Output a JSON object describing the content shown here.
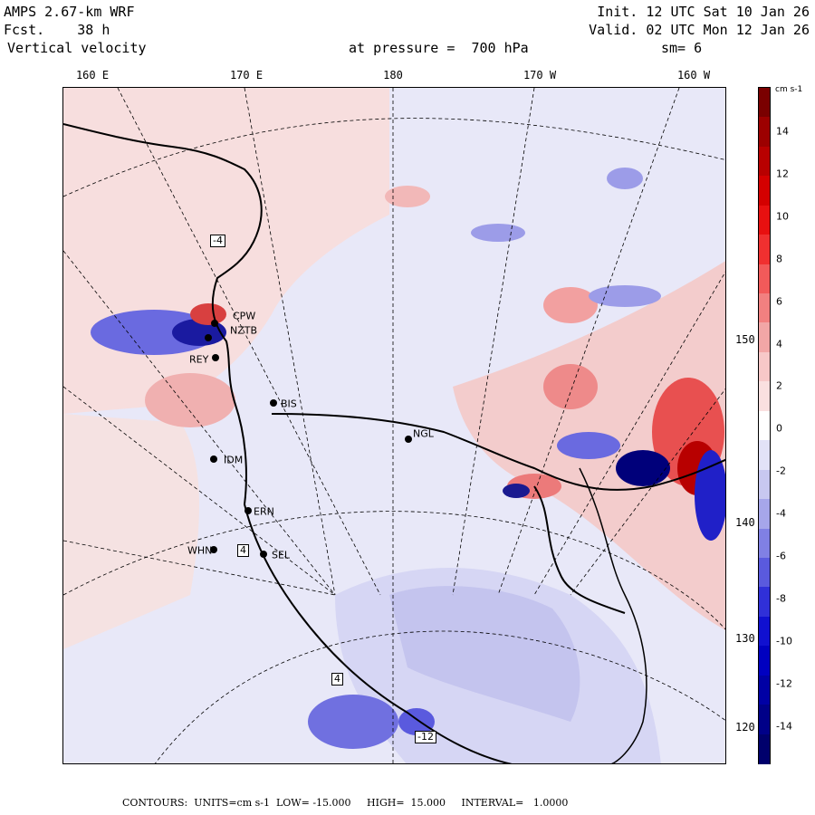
{
  "header": {
    "model": "AMPS 2.67-km WRF",
    "forecast": "Fcst.    38 h",
    "field": "Vertical velocity",
    "init": "Init. 12 UTC Sat 10 Jan 26",
    "valid": "Valid. 02 UTC Mon 12 Jan 26",
    "pressure": "at pressure =  700 hPa",
    "smoothing": "sm= 6"
  },
  "lon_labels": [
    "160 E",
    "170 E",
    "180",
    "170 W",
    "160 W"
  ],
  "lat_labels": [
    "150 W",
    "140 W",
    "130 W",
    "120 W"
  ],
  "colorbar": {
    "unit": "cm s-1",
    "ticks": [
      "14",
      "12",
      "10",
      "8",
      "6",
      "4",
      "2",
      "0",
      "-2",
      "-4",
      "-6",
      "-8",
      "-10",
      "-12",
      "-14"
    ],
    "colors": [
      "#7a0000",
      "#9c0000",
      "#b80000",
      "#d40000",
      "#e81010",
      "#f03030",
      "#f25a5a",
      "#f28080",
      "#f2a6a6",
      "#f7c8c8",
      "#fae0e0",
      "#ffffff",
      "#e2e2f7",
      "#c8c8f0",
      "#a6a6ea",
      "#8080e4",
      "#5a5ade",
      "#3030d8",
      "#1010d0",
      "#0000c0",
      "#0000a4",
      "#000088",
      "#00006c"
    ]
  },
  "stations": [
    {
      "code": "CPW"
    },
    {
      "code": "NZTB"
    },
    {
      "code": "REY"
    },
    {
      "code": "BIS"
    },
    {
      "code": "NGL"
    },
    {
      "code": "IDM"
    },
    {
      "code": "ERN"
    },
    {
      "code": "WHN"
    },
    {
      "code": "SEL"
    }
  ],
  "extrema_labels": [
    "-4",
    "4",
    "4",
    "-12"
  ],
  "footer": {
    "contours": "CONTOURS:  UNITS=cm s-1  LOW= -15.000     HIGH=  15.000     INTERVAL=   1.0000"
  },
  "colors": {
    "background_field": "#e8e8f8",
    "positive": "#f2a6a6",
    "negative": "#8080e4"
  }
}
